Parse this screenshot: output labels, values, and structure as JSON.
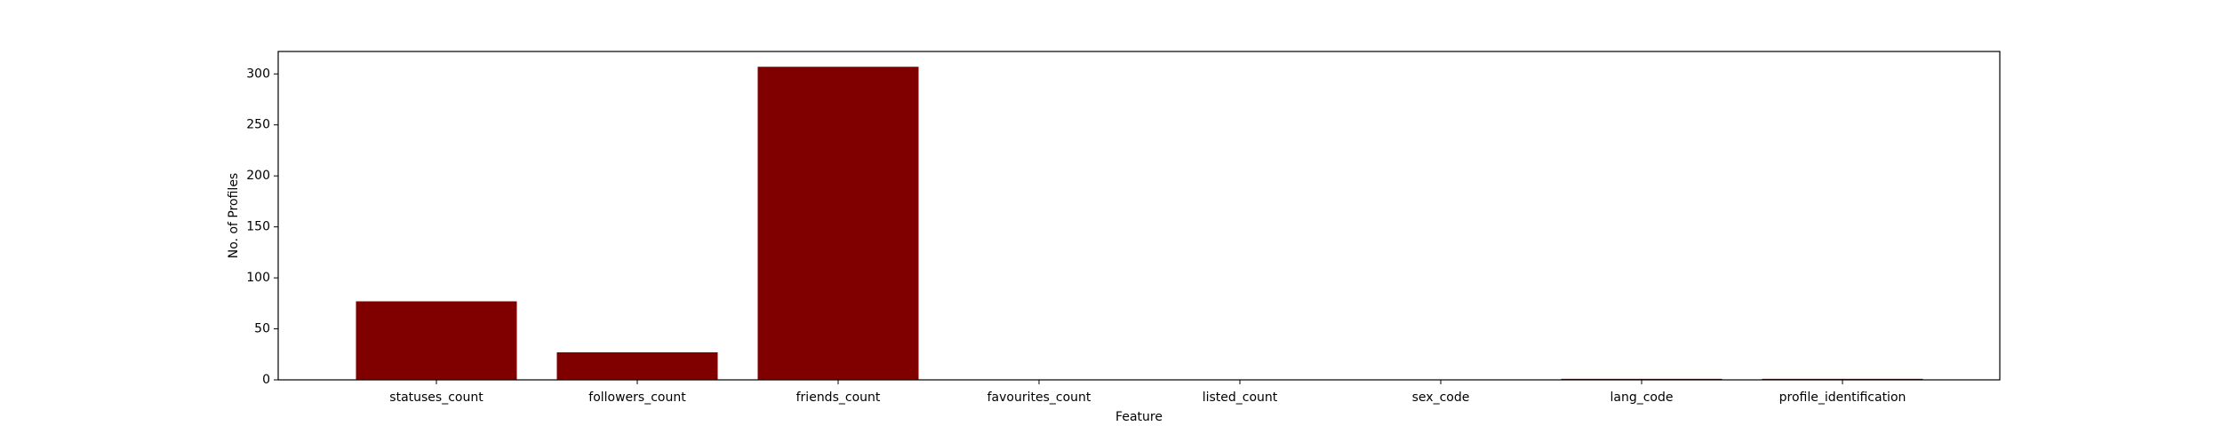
{
  "chart_data": {
    "type": "bar",
    "title": "",
    "xlabel": "Feature",
    "ylabel": "No. of Profiles",
    "categories": [
      "statuses_count",
      "followers_count",
      "friends_count",
      "favourites_count",
      "listed_count",
      "sex_code",
      "lang_code",
      "profile_identification"
    ],
    "values": [
      77,
      27,
      307,
      0,
      0,
      0,
      1,
      1
    ],
    "ylim": [
      0,
      322
    ],
    "yticks": [
      0,
      50,
      100,
      150,
      200,
      250,
      300
    ],
    "grid": false,
    "legend": "none",
    "bar_color": "#800000",
    "axis_color": "#000000"
  }
}
